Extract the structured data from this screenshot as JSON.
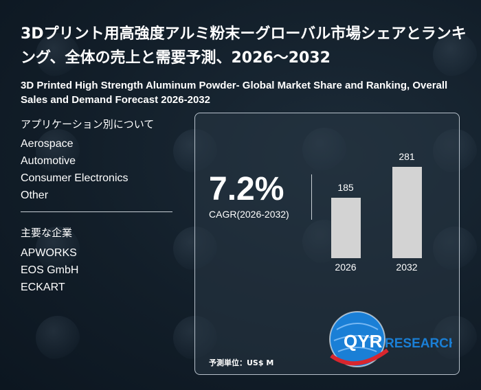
{
  "title": "3Dプリント用高強度アルミ粉末ーグローバル市場シェアとランキング、全体の売上と需要予測、2026～2032",
  "subtitle": "3D Printed High Strength Aluminum Powder- Global Market Share and Ranking, Overall Sales and Demand Forecast 2026-2032",
  "applications": {
    "heading": "アプリケーション別について",
    "items": [
      "Aerospace",
      "Automotive",
      "Consumer Electronics",
      "Other"
    ]
  },
  "companies": {
    "heading": "主要な企業",
    "items": [
      "APWORKS",
      "EOS GmbH",
      "ECKART"
    ]
  },
  "cagr": {
    "value": "7.2%",
    "label": "CAGR(2026-2032)"
  },
  "unit": "予測単位：US$ M",
  "logo": {
    "text_qyr": "QYR",
    "text_research": "RESEARCH"
  },
  "colors": {
    "bar": "#d3d3d3",
    "background": "#0f1b26",
    "logo_blue": "#1a7fd6",
    "logo_red": "#d8262e"
  },
  "chart_data": {
    "type": "bar",
    "categories": [
      "2026",
      "2032"
    ],
    "values": [
      185,
      281
    ],
    "ylim": [
      0,
      281
    ]
  }
}
